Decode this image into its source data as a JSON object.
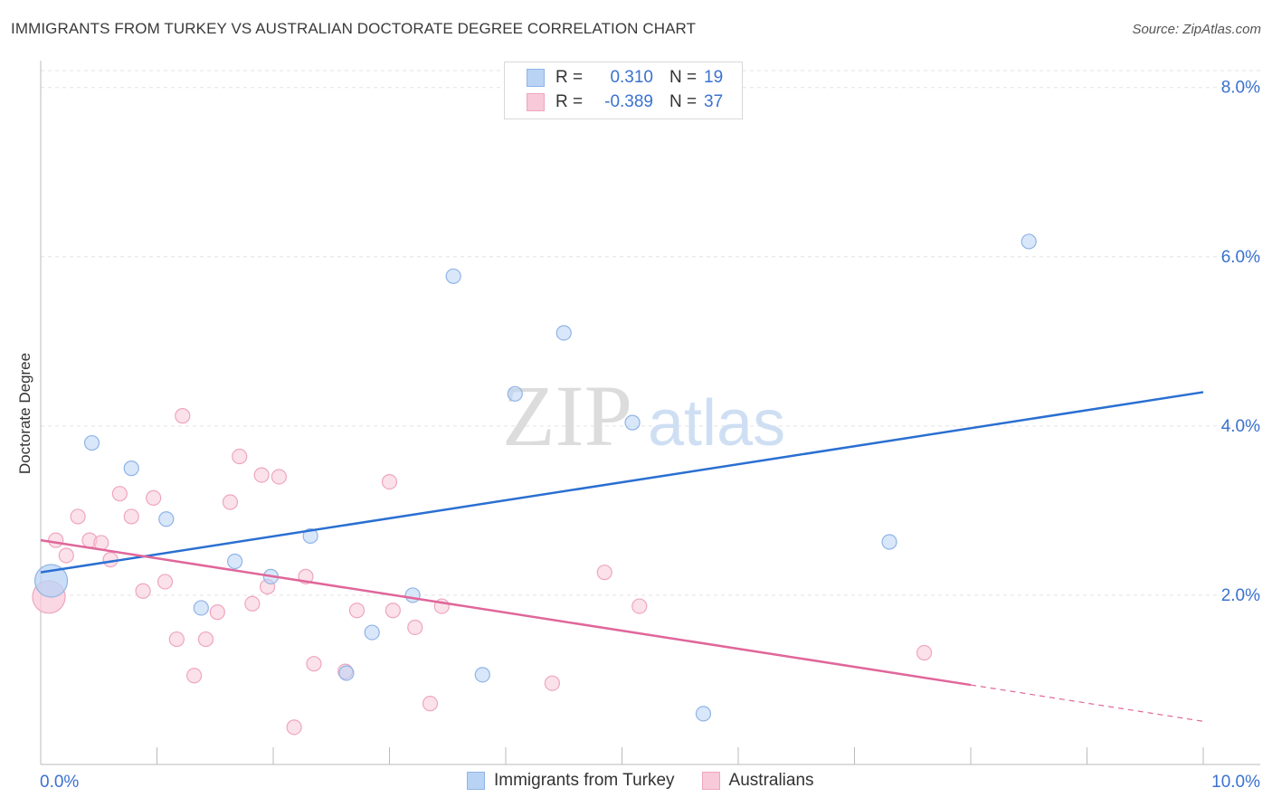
{
  "header": {
    "title": "IMMIGRANTS FROM TURKEY VS AUSTRALIAN DOCTORATE DEGREE CORRELATION CHART",
    "source": "Source: ZipAtlas.com"
  },
  "watermark": {
    "zip": "ZIP",
    "atlas": "atlas"
  },
  "colors": {
    "blue_fill": "#b9d3f5",
    "blue_stroke": "#8fb4e6",
    "blue_line": "#2a6fd1",
    "pink_fill": "#f8c9d8",
    "pink_stroke": "#eea6bf",
    "pink_line": "#e0669a",
    "axis_text": "#3a72d0"
  },
  "legend": {
    "rows": [
      {
        "r_label": "R =",
        "r_value": "0.310",
        "n_label": "N =",
        "n_value": "19"
      },
      {
        "r_label": "R =",
        "r_value": "-0.389",
        "n_label": "N =",
        "n_value": "37"
      }
    ]
  },
  "bottom_legend": [
    "Immigrants from Turkey",
    "Australians"
  ],
  "chart_data": {
    "type": "scatter",
    "title": "IMMIGRANTS FROM TURKEY VS AUSTRALIAN DOCTORATE DEGREE CORRELATION CHART",
    "xlabel": "",
    "ylabel": "Doctorate Degree",
    "xlim": [
      0,
      10
    ],
    "ylim": [
      0,
      8.2
    ],
    "x_tick_labels": [
      {
        "value": 0,
        "label": "0.0%"
      },
      {
        "value": 10,
        "label": "10.0%"
      }
    ],
    "y_tick_labels": [
      {
        "value": 2,
        "label": "2.0%"
      },
      {
        "value": 4,
        "label": "4.0%"
      },
      {
        "value": 6,
        "label": "6.0%"
      },
      {
        "value": 8,
        "label": "8.0%"
      }
    ],
    "x_minor_ticks": [
      1,
      2,
      3,
      4,
      5,
      6,
      7,
      8,
      9,
      10
    ],
    "series": [
      {
        "name": "Immigrants from Turkey",
        "color": "blue",
        "points": [
          {
            "x": 0.09,
            "y": 2.17,
            "big": true
          },
          {
            "x": 0.44,
            "y": 3.8
          },
          {
            "x": 0.78,
            "y": 3.5
          },
          {
            "x": 1.08,
            "y": 2.9
          },
          {
            "x": 1.38,
            "y": 1.85
          },
          {
            "x": 1.67,
            "y": 2.4
          },
          {
            "x": 1.98,
            "y": 2.22
          },
          {
            "x": 2.32,
            "y": 2.7
          },
          {
            "x": 2.63,
            "y": 1.08
          },
          {
            "x": 2.85,
            "y": 1.56
          },
          {
            "x": 3.2,
            "y": 2.0
          },
          {
            "x": 3.55,
            "y": 5.77
          },
          {
            "x": 3.8,
            "y": 1.06
          },
          {
            "x": 4.08,
            "y": 4.38
          },
          {
            "x": 4.5,
            "y": 5.1
          },
          {
            "x": 5.09,
            "y": 4.04
          },
          {
            "x": 5.7,
            "y": 0.6
          },
          {
            "x": 7.3,
            "y": 2.63
          },
          {
            "x": 8.5,
            "y": 6.18
          }
        ],
        "trend": {
          "x0": 0,
          "y0": 2.27,
          "x1": 10,
          "y1": 4.4
        }
      },
      {
        "name": "Australians",
        "color": "pink",
        "points": [
          {
            "x": 0.07,
            "y": 1.98,
            "big": true
          },
          {
            "x": 0.13,
            "y": 2.65
          },
          {
            "x": 0.22,
            "y": 2.47
          },
          {
            "x": 0.32,
            "y": 2.93
          },
          {
            "x": 0.42,
            "y": 2.65
          },
          {
            "x": 0.52,
            "y": 2.62
          },
          {
            "x": 0.6,
            "y": 2.42
          },
          {
            "x": 0.68,
            "y": 3.2
          },
          {
            "x": 0.78,
            "y": 2.93
          },
          {
            "x": 0.88,
            "y": 2.05
          },
          {
            "x": 0.97,
            "y": 3.15
          },
          {
            "x": 1.07,
            "y": 2.16
          },
          {
            "x": 1.17,
            "y": 1.48
          },
          {
            "x": 1.22,
            "y": 4.12
          },
          {
            "x": 1.32,
            "y": 1.05
          },
          {
            "x": 1.42,
            "y": 1.48
          },
          {
            "x": 1.52,
            "y": 1.8
          },
          {
            "x": 1.63,
            "y": 3.1
          },
          {
            "x": 1.71,
            "y": 3.64
          },
          {
            "x": 1.82,
            "y": 1.9
          },
          {
            "x": 1.9,
            "y": 3.42
          },
          {
            "x": 1.95,
            "y": 2.1
          },
          {
            "x": 2.05,
            "y": 3.4
          },
          {
            "x": 2.28,
            "y": 2.22
          },
          {
            "x": 2.18,
            "y": 0.44
          },
          {
            "x": 2.35,
            "y": 1.19
          },
          {
            "x": 2.62,
            "y": 1.1
          },
          {
            "x": 2.72,
            "y": 1.82
          },
          {
            "x": 3.0,
            "y": 3.34
          },
          {
            "x": 3.03,
            "y": 1.82
          },
          {
            "x": 3.22,
            "y": 1.62
          },
          {
            "x": 3.35,
            "y": 0.72
          },
          {
            "x": 3.45,
            "y": 1.87
          },
          {
            "x": 4.4,
            "y": 0.96
          },
          {
            "x": 4.85,
            "y": 2.27
          },
          {
            "x": 5.15,
            "y": 1.87
          },
          {
            "x": 7.6,
            "y": 1.32
          }
        ],
        "trend": {
          "x0": 0,
          "y0": 2.65,
          "x1": 8.0,
          "y1": 0.94,
          "dash_to_x": 10,
          "dash_to_y": 0.51
        }
      }
    ]
  }
}
